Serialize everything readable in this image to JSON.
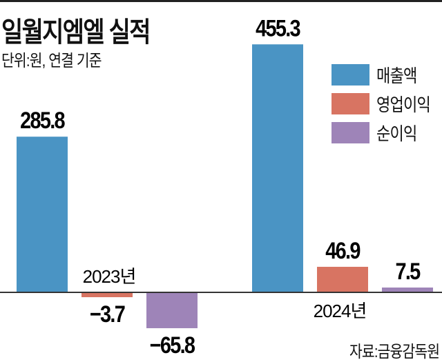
{
  "title": "일월지엠엘 실적",
  "subtitle": "단위:원, 연결 기준",
  "source": "자료:금융감독원",
  "chart_data": {
    "type": "bar",
    "title": "일월지엠엘 실적",
    "subtitle": "단위:원, 연결 기준",
    "categories": [
      "2023년",
      "2024년"
    ],
    "series": [
      {
        "name": "매출액",
        "color": "#4a94c4",
        "values": [
          285.8,
          455.3
        ],
        "labels": [
          "285.8",
          "455.3"
        ]
      },
      {
        "name": "영업이익",
        "color": "#d87462",
        "values": [
          -3.7,
          46.9
        ],
        "labels": [
          "−3.7",
          "46.9"
        ]
      },
      {
        "name": "순이익",
        "color": "#9e84b8",
        "values": [
          -65.8,
          7.5
        ],
        "labels": [
          "−65.8",
          "7.5"
        ]
      }
    ],
    "legend": "top-right",
    "grid": false,
    "axes_shown": false
  }
}
